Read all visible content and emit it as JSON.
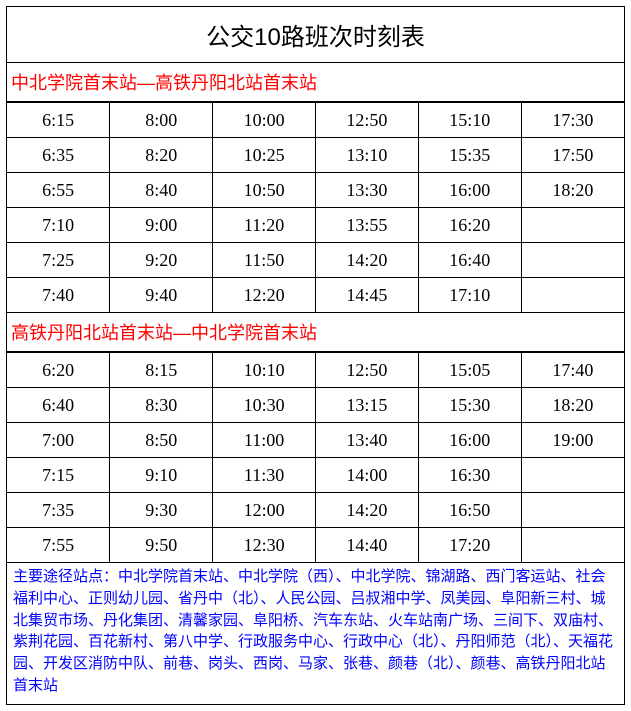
{
  "title": "公交10路班次时刻表",
  "direction1": {
    "label": "中北学院首末站—高铁丹阳北站首末站",
    "rows": [
      [
        "6:15",
        "8:00",
        "10:00",
        "12:50",
        "15:10",
        "17:30"
      ],
      [
        "6:35",
        "8:20",
        "10:25",
        "13:10",
        "15:35",
        "17:50"
      ],
      [
        "6:55",
        "8:40",
        "10:50",
        "13:30",
        "16:00",
        "18:20"
      ],
      [
        "7:10",
        "9:00",
        "11:20",
        "13:55",
        "16:20",
        ""
      ],
      [
        "7:25",
        "9:20",
        "11:50",
        "14:20",
        "16:40",
        ""
      ],
      [
        "7:40",
        "9:40",
        "12:20",
        "14:45",
        "17:10",
        ""
      ]
    ]
  },
  "direction2": {
    "label": "高铁丹阳北站首末站—中北学院首末站",
    "rows": [
      [
        "6:20",
        "8:15",
        "10:10",
        "12:50",
        "15:05",
        "17:40"
      ],
      [
        "6:40",
        "8:30",
        "10:30",
        "13:15",
        "15:30",
        "18:20"
      ],
      [
        "7:00",
        "8:50",
        "11:00",
        "13:40",
        "16:00",
        "19:00"
      ],
      [
        "7:15",
        "9:10",
        "11:30",
        "14:00",
        "16:30",
        ""
      ],
      [
        "7:35",
        "9:30",
        "12:00",
        "14:20",
        "16:50",
        ""
      ],
      [
        "7:55",
        "9:50",
        "12:30",
        "14:40",
        "17:20",
        ""
      ]
    ]
  },
  "stops": {
    "label": "主要途径站点：",
    "text": "中北学院首末站、中北学院（西）、中北学院、锦湖路、西门客运站、社会福利中心、正则幼儿园、省丹中（北）、人民公园、吕叔湘中学、凤美园、阜阳新三村、城北集贸市场、丹化集团、清馨家园、阜阳桥、汽车东站、火车站南广场、三间下、双庙村、紫荆花园、百花新村、第八中学、行政服务中心、行政中心（北）、丹阳师范（北）、天福花园、开发区消防中队、前巷、岗头、西岗、马家、张巷、颜巷（北）、颜巷、高铁丹阳北站首末站"
  },
  "colors": {
    "direction_text": "#ff0000",
    "stops_text": "#0000ff",
    "border": "#000000",
    "background": "#ffffff"
  }
}
